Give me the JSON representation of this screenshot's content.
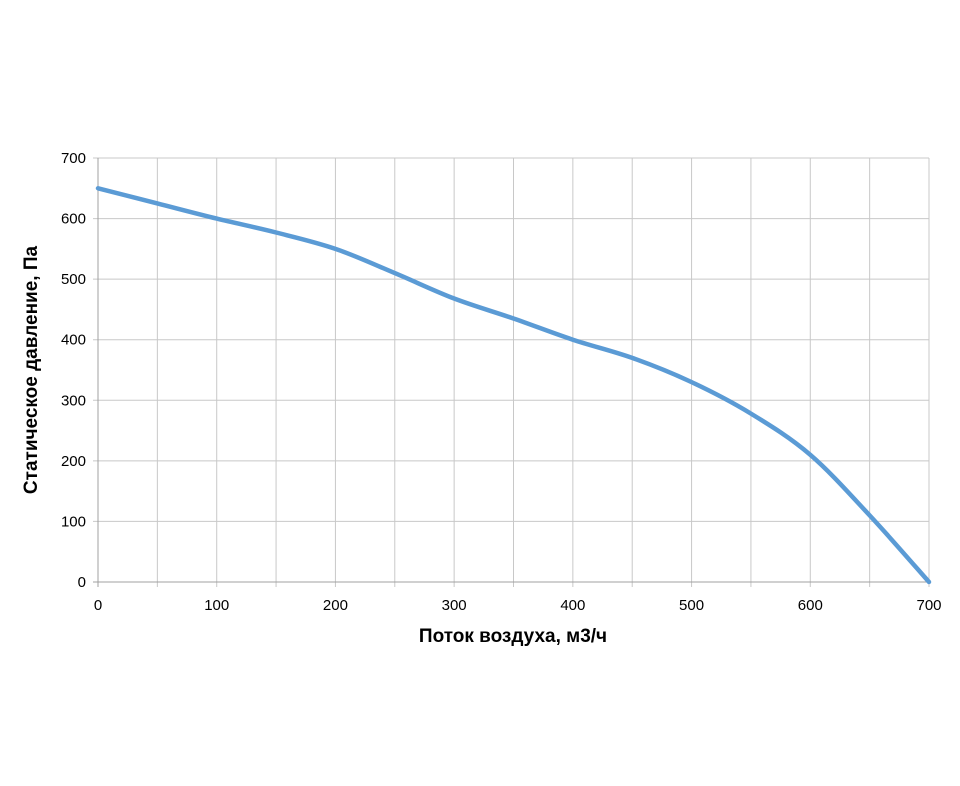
{
  "chart_data": {
    "type": "line",
    "xlabel": "Поток воздуха, м3/ч",
    "ylabel": "Статическое давление, Па",
    "xlim": [
      0,
      700
    ],
    "ylim": [
      0,
      700
    ],
    "x_ticks": [
      0,
      100,
      200,
      300,
      400,
      500,
      600,
      700
    ],
    "y_ticks": [
      0,
      100,
      200,
      300,
      400,
      500,
      600,
      700
    ],
    "x_grid_step": 50,
    "y_grid_step": 100,
    "grid": true,
    "legend": "none",
    "series": [
      {
        "color": "#5b9bd5",
        "x": [
          0,
          50,
          100,
          150,
          200,
          250,
          300,
          350,
          400,
          450,
          500,
          550,
          600,
          650,
          700
        ],
        "y": [
          650,
          625,
          600,
          577,
          550,
          510,
          468,
          435,
          400,
          370,
          330,
          278,
          210,
          110,
          0
        ]
      }
    ]
  }
}
